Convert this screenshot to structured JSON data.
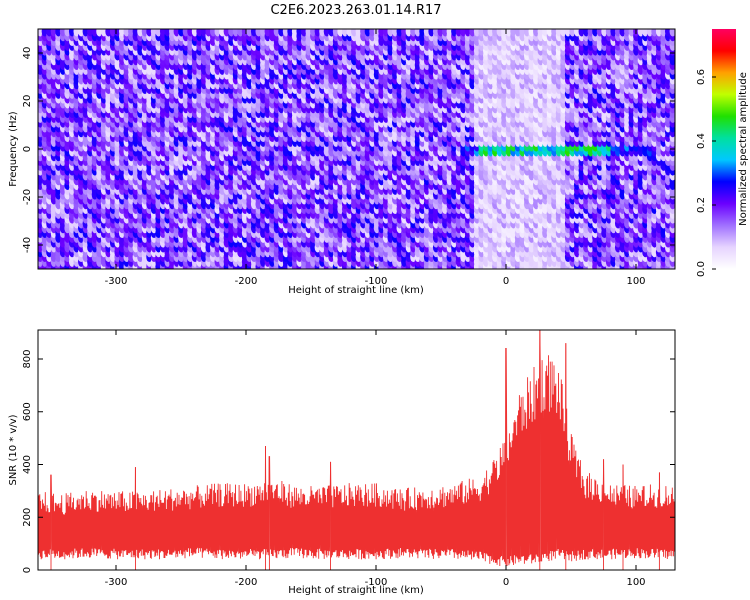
{
  "figure_title": "C2E6.2023.263.01.14.R17",
  "colors": {
    "snr_line": "#ee3030",
    "background": "#ffffff",
    "axis": "#000000",
    "colormap": [
      "#ffffff",
      "#e6d4ff",
      "#a070ff",
      "#6a00ff",
      "#0000ff",
      "#00c8ff",
      "#00e0a0",
      "#20e000",
      "#c0ff00",
      "#ffa000",
      "#ff0000",
      "#ff0060"
    ]
  },
  "chart_data": [
    {
      "type": "heatmap",
      "xlabel": "Height of straight line (km)",
      "ylabel": "Frequency (Hz)",
      "xlim": [
        -360,
        130
      ],
      "ylim": [
        -50,
        50
      ],
      "xticks": [
        -300,
        -200,
        -100,
        0,
        100
      ],
      "yticks": [
        -40,
        -20,
        0,
        20,
        40
      ],
      "colorbar": {
        "label": "Normalized spectral amplitude",
        "range": [
          0,
          0.75
        ],
        "ticks": [
          "0.0",
          "0.2",
          "0.4",
          "0.6"
        ]
      },
      "features": {
        "background_level": 0.2,
        "quiet_band_km": [
          -25,
          45
        ],
        "signal_line_hz": 0,
        "signal_line_km": [
          -35,
          115
        ],
        "signal_peak_level": 0.4
      }
    },
    {
      "type": "line",
      "xlabel": "Height of straight line (km)",
      "ylabel": "SNR (10 * v/v)",
      "xlim": [
        -360,
        130
      ],
      "ylim": [
        0,
        910
      ],
      "xticks": [
        -300,
        -200,
        -100,
        0,
        100
      ],
      "yticks": [
        0,
        200,
        400,
        600,
        800
      ],
      "series": [
        {
          "x": [
            -360,
            -340,
            -320,
            -300,
            -280,
            -260,
            -240,
            -220,
            -200,
            -180,
            -160,
            -140,
            -120,
            -100,
            -80,
            -60,
            -40,
            -20,
            -10,
            0,
            10,
            20,
            30,
            40,
            50,
            60,
            80,
            100,
            120,
            130
          ],
          "y_max": [
            300,
            290,
            310,
            300,
            300,
            310,
            320,
            330,
            330,
            350,
            320,
            320,
            330,
            330,
            310,
            320,
            330,
            360,
            420,
            520,
            680,
            760,
            840,
            800,
            520,
            380,
            330,
            320,
            330,
            320
          ],
          "y_min": [
            40,
            40,
            45,
            40,
            40,
            40,
            45,
            40,
            40,
            40,
            45,
            40,
            40,
            40,
            45,
            40,
            40,
            30,
            20,
            10,
            20,
            20,
            30,
            40,
            30,
            40,
            40,
            45,
            40,
            40
          ],
          "spikes": [
            [
              -350,
              360
            ],
            [
              -285,
              390
            ],
            [
              -185,
              470
            ],
            [
              -182,
              430
            ],
            [
              -135,
              410
            ],
            [
              0,
              840
            ],
            [
              26,
              910
            ],
            [
              46,
              860
            ],
            [
              75,
              420
            ],
            [
              90,
              400
            ],
            [
              118,
              370
            ]
          ]
        }
      ]
    }
  ]
}
